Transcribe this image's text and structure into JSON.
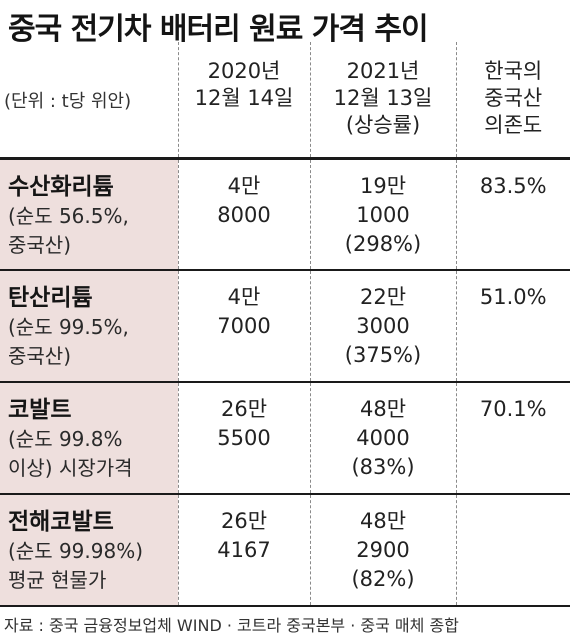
{
  "title": "중국 전기차 배터리 원료 가격 추이",
  "unit": "(단위 : t당 위안)",
  "headers": [
    [
      "2020년",
      "12월 14일"
    ],
    [
      "2021년",
      "12월 13일",
      "(상승률)"
    ],
    [
      "한국의",
      "중국산",
      "의존도"
    ]
  ],
  "rows": [
    {
      "name": "수산화리튬",
      "sub": [
        "(순도 56.5%,",
        "중국산)"
      ],
      "y2020": [
        "4만",
        "8000"
      ],
      "y2021": [
        "19만",
        "1000",
        "(298%)"
      ],
      "dependency": "83.5%"
    },
    {
      "name": "탄산리튬",
      "sub": [
        "(순도 99.5%,",
        "중국산)"
      ],
      "y2020": [
        "4만",
        "7000"
      ],
      "y2021": [
        "22만",
        "3000",
        "(375%)"
      ],
      "dependency": "51.0%"
    },
    {
      "name": "코발트",
      "sub": [
        "(순도 99.8%",
        "이상) 시장가격"
      ],
      "y2020": [
        "26만",
        "5500"
      ],
      "y2021": [
        "48만",
        "4000",
        "(83%)"
      ],
      "dependency": "70.1%"
    },
    {
      "name": "전해코발트",
      "sub": [
        "(순도 99.98%)",
        "평균 현물가"
      ],
      "y2020": [
        "26만",
        "4167"
      ],
      "y2021": [
        "48만",
        "2900",
        "(82%)"
      ],
      "dependency": ""
    }
  ],
  "source": "자료 : 중국 금융정보업체 WIND · 코트라 중국본부 · 중국 매체 종합"
}
